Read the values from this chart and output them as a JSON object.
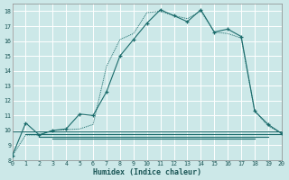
{
  "xlabel": "Humidex (Indice chaleur)",
  "bg_color": "#cce8e8",
  "grid_color": "#ffffff",
  "line_color": "#1a6b6b",
  "xlim": [
    0,
    20
  ],
  "ylim": [
    8,
    18.5
  ],
  "xticks": [
    0,
    1,
    2,
    3,
    4,
    5,
    6,
    7,
    8,
    9,
    10,
    11,
    12,
    13,
    14,
    15,
    16,
    17,
    18,
    19,
    20
  ],
  "yticks": [
    8,
    9,
    10,
    11,
    12,
    13,
    14,
    15,
    16,
    17,
    18
  ],
  "curve1_x": [
    0,
    1,
    2,
    3,
    4,
    5,
    6,
    7,
    8,
    9,
    10,
    11,
    12,
    13,
    14,
    15,
    16,
    17,
    18,
    19,
    20
  ],
  "curve1_y": [
    8.3,
    10.5,
    9.7,
    10.0,
    10.1,
    11.1,
    11.0,
    12.6,
    15.0,
    16.1,
    17.2,
    18.1,
    17.7,
    17.3,
    18.1,
    16.6,
    16.8,
    16.3,
    11.3,
    10.4,
    9.8
  ],
  "curve2_x": [
    0,
    1,
    2,
    3,
    4,
    5,
    6,
    7,
    8,
    9,
    10,
    11,
    12,
    13,
    14,
    15,
    16,
    17,
    18,
    19,
    20
  ],
  "curve2_y": [
    8.3,
    9.7,
    9.7,
    10.0,
    10.05,
    10.1,
    10.4,
    14.3,
    16.1,
    16.5,
    17.9,
    18.0,
    17.7,
    17.5,
    18.0,
    16.6,
    16.5,
    16.2,
    11.3,
    10.3,
    9.8
  ],
  "flat_lines": [
    {
      "x0": 0,
      "x1": 20,
      "y": 9.95
    },
    {
      "x0": 1,
      "x1": 20,
      "y": 9.75
    },
    {
      "x0": 2,
      "x1": 19,
      "y": 9.6
    },
    {
      "x0": 3,
      "x1": 18,
      "y": 9.45
    }
  ]
}
